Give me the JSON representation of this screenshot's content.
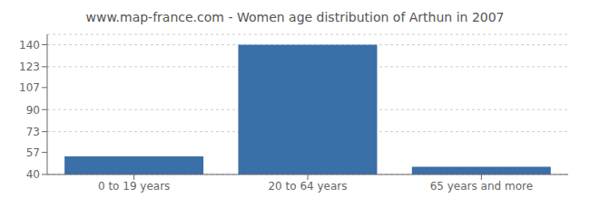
{
  "chart_data": {
    "type": "bar",
    "title": "www.map-france.com - Women age distribution of Arthun in 2007",
    "categories": [
      "0 to 19 years",
      "20 to 64 years",
      "65 years and more"
    ],
    "values": [
      54,
      140,
      46
    ],
    "color": "#3a6fa8",
    "ylim": [
      40,
      148
    ],
    "yticks": [
      40,
      57,
      73,
      90,
      107,
      123,
      140
    ],
    "grid": true
  }
}
